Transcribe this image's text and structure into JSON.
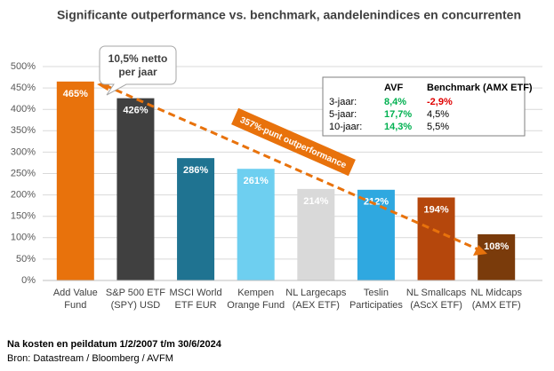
{
  "chart_data": {
    "type": "bar",
    "title": "Significante outperformance vs. benchmark, aandelenindices en concurrenten",
    "categories": [
      "Add Value\nFund",
      "S&P 500 ETF\n(SPY) USD",
      "MSCI World\nETF EUR",
      "Kempen\nOrange Fund",
      "NL Largecaps\n(AEX ETF)",
      "Teslin\nParticipaties",
      "NL Smallcaps\n(AScX ETF)",
      "NL Midcaps\n(AMX ETF)"
    ],
    "values": [
      465,
      426,
      286,
      261,
      214,
      212,
      194,
      108
    ],
    "value_labels": [
      "465%",
      "426%",
      "286%",
      "261%",
      "214%",
      "212%",
      "194%",
      "108%"
    ],
    "colors": [
      "#e8720c",
      "#404040",
      "#1f7391",
      "#6ecff0",
      "#d9d9d9",
      "#2fa8e0",
      "#b5470c",
      "#7a3b0b"
    ],
    "ylim": [
      0,
      500
    ],
    "yticks": [
      {
        "value": 0,
        "label": "0%"
      },
      {
        "value": 50,
        "label": "50%"
      },
      {
        "value": 100,
        "label": "100%"
      },
      {
        "value": 150,
        "label": "150%"
      },
      {
        "value": 200,
        "label": "200%"
      },
      {
        "value": 250,
        "label": "250%"
      },
      {
        "value": 300,
        "label": "300%"
      },
      {
        "value": 350,
        "label": "350%"
      },
      {
        "value": 400,
        "label": "400%"
      },
      {
        "value": 450,
        "label": "450%"
      },
      {
        "value": 500,
        "label": "500%"
      }
    ],
    "grid": true,
    "callout": "10,5% netto\nper jaar",
    "arrow_label": "357%-punt outperformance",
    "inset_table": {
      "columns": [
        "AVF",
        "Benchmark (AMX ETF)"
      ],
      "rows": [
        [
          "3-jaar:",
          "8,4%",
          "-2,9%"
        ],
        [
          "5-jaar:",
          "17,7%",
          "4,5%"
        ],
        [
          "10-jaar:",
          "14,3%",
          "5,5%"
        ]
      ]
    },
    "footnote": "Na kosten en peildatum 1/2/2007 t/m 30/6/2024",
    "source": "Bron: Datastream / Bloomberg / AVFM"
  }
}
